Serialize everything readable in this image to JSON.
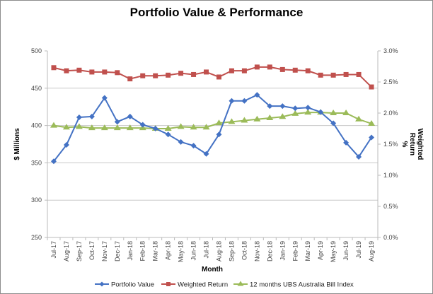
{
  "chart_data": {
    "type": "line",
    "title": "Portfolio Value & Performance",
    "xlabel": "Month",
    "ylabel": "$ Millions",
    "y2label": [
      "Weighted",
      "Return",
      "%"
    ],
    "ylim": [
      250,
      500
    ],
    "y2lim": [
      0,
      3.0
    ],
    "yticks": [
      "500",
      "450",
      "400",
      "350",
      "300",
      "250"
    ],
    "y2ticks": [
      "3.0%",
      "2.5%",
      "2.0%",
      "1.5%",
      "1.0%",
      "0.5%",
      "0.0%"
    ],
    "grid": true,
    "legend_position": "bottom",
    "categories": [
      "Jul-17",
      "Aug-17",
      "Sep-17",
      "Oct-17",
      "Nov-17",
      "Dec-17",
      "Jan-18",
      "Feb-18",
      "Mar-18",
      "Apr-18",
      "May-18",
      "Jun-18",
      "Jul-18",
      "Aug-18",
      "Sep-18",
      "Oct-18",
      "Nov-18",
      "Dec-18",
      "Jan-19",
      "Feb-19",
      "Mar-19",
      "Apr-19",
      "May-19",
      "Jun-19",
      "Jul-19",
      "Aug-19"
    ],
    "series": [
      {
        "name": "Portfolio Value",
        "axis": "left",
        "color": "#4472c4",
        "marker": "diamond",
        "values": [
          352,
          374,
          411,
          412,
          437,
          405,
          412,
          401,
          396,
          388,
          378,
          373,
          362,
          388,
          433,
          433,
          441,
          426,
          426,
          423,
          424,
          418,
          403,
          377,
          358,
          384
        ]
      },
      {
        "name": "Weighted Return",
        "axis": "right",
        "color": "#c0504d",
        "marker": "square",
        "values": [
          2.73,
          2.68,
          2.69,
          2.66,
          2.66,
          2.65,
          2.55,
          2.6,
          2.6,
          2.61,
          2.64,
          2.62,
          2.66,
          2.58,
          2.68,
          2.68,
          2.74,
          2.74,
          2.7,
          2.69,
          2.68,
          2.61,
          2.61,
          2.62,
          2.62,
          2.42
        ]
      },
      {
        "name": "12 months UBS Australia Bill Index",
        "axis": "right",
        "color": "#9bbb59",
        "marker": "triangle",
        "values": [
          1.8,
          1.77,
          1.78,
          1.76,
          1.76,
          1.76,
          1.76,
          1.76,
          1.75,
          1.75,
          1.78,
          1.77,
          1.77,
          1.84,
          1.86,
          1.88,
          1.9,
          1.92,
          1.94,
          1.99,
          2.01,
          2.01,
          2.0,
          2.0,
          1.9,
          1.83
        ]
      }
    ]
  }
}
